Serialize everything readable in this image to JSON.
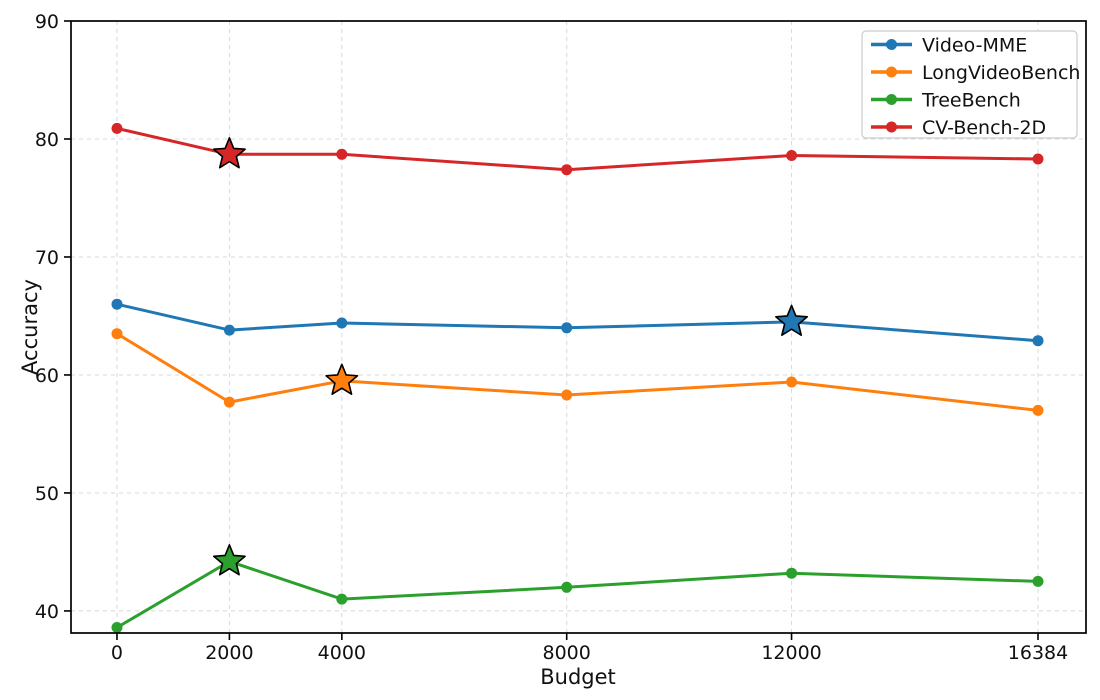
{
  "figure": {
    "background": "#ffffff",
    "spine_color": "#000000",
    "grid_color": "#d8d8d8",
    "tick_label_color": "#111111"
  },
  "chart_data": {
    "type": "line",
    "title": "",
    "xlabel": "Budget",
    "ylabel": "Accuracy",
    "x": [
      0,
      2000,
      4000,
      8000,
      12000,
      16384
    ],
    "x_tick_labels": [
      "0",
      "2000",
      "4000",
      "8000",
      "12000",
      "16384"
    ],
    "y_ticks": [
      40,
      50,
      60,
      70,
      80,
      90
    ],
    "y_tick_labels": [
      "40",
      "50",
      "60",
      "70",
      "80",
      "90"
    ],
    "xlim": [
      -818,
      17238
    ],
    "ylim": [
      38.13,
      90
    ],
    "grid": true,
    "grid_style": "dashed",
    "legend_position": "upper right",
    "series": [
      {
        "name": "Video-MME",
        "color": "#1f77b4",
        "marker": "circle",
        "values": [
          66.0,
          63.8,
          64.4,
          64.0,
          64.5,
          62.9
        ],
        "star_at_x": 12000
      },
      {
        "name": "LongVideoBench",
        "color": "#ff7f0e",
        "marker": "circle",
        "values": [
          63.5,
          57.7,
          59.5,
          58.3,
          59.4,
          57.0
        ],
        "star_at_x": 4000
      },
      {
        "name": "TreeBench",
        "color": "#2ca02c",
        "marker": "circle",
        "values": [
          38.6,
          44.2,
          41.0,
          42.0,
          43.2,
          42.5
        ],
        "star_at_x": 2000
      },
      {
        "name": "CV-Bench-2D",
        "color": "#d62728",
        "marker": "circle",
        "values": [
          80.9,
          78.7,
          78.7,
          77.4,
          78.6,
          78.3
        ],
        "star_at_x": 2000
      }
    ]
  }
}
